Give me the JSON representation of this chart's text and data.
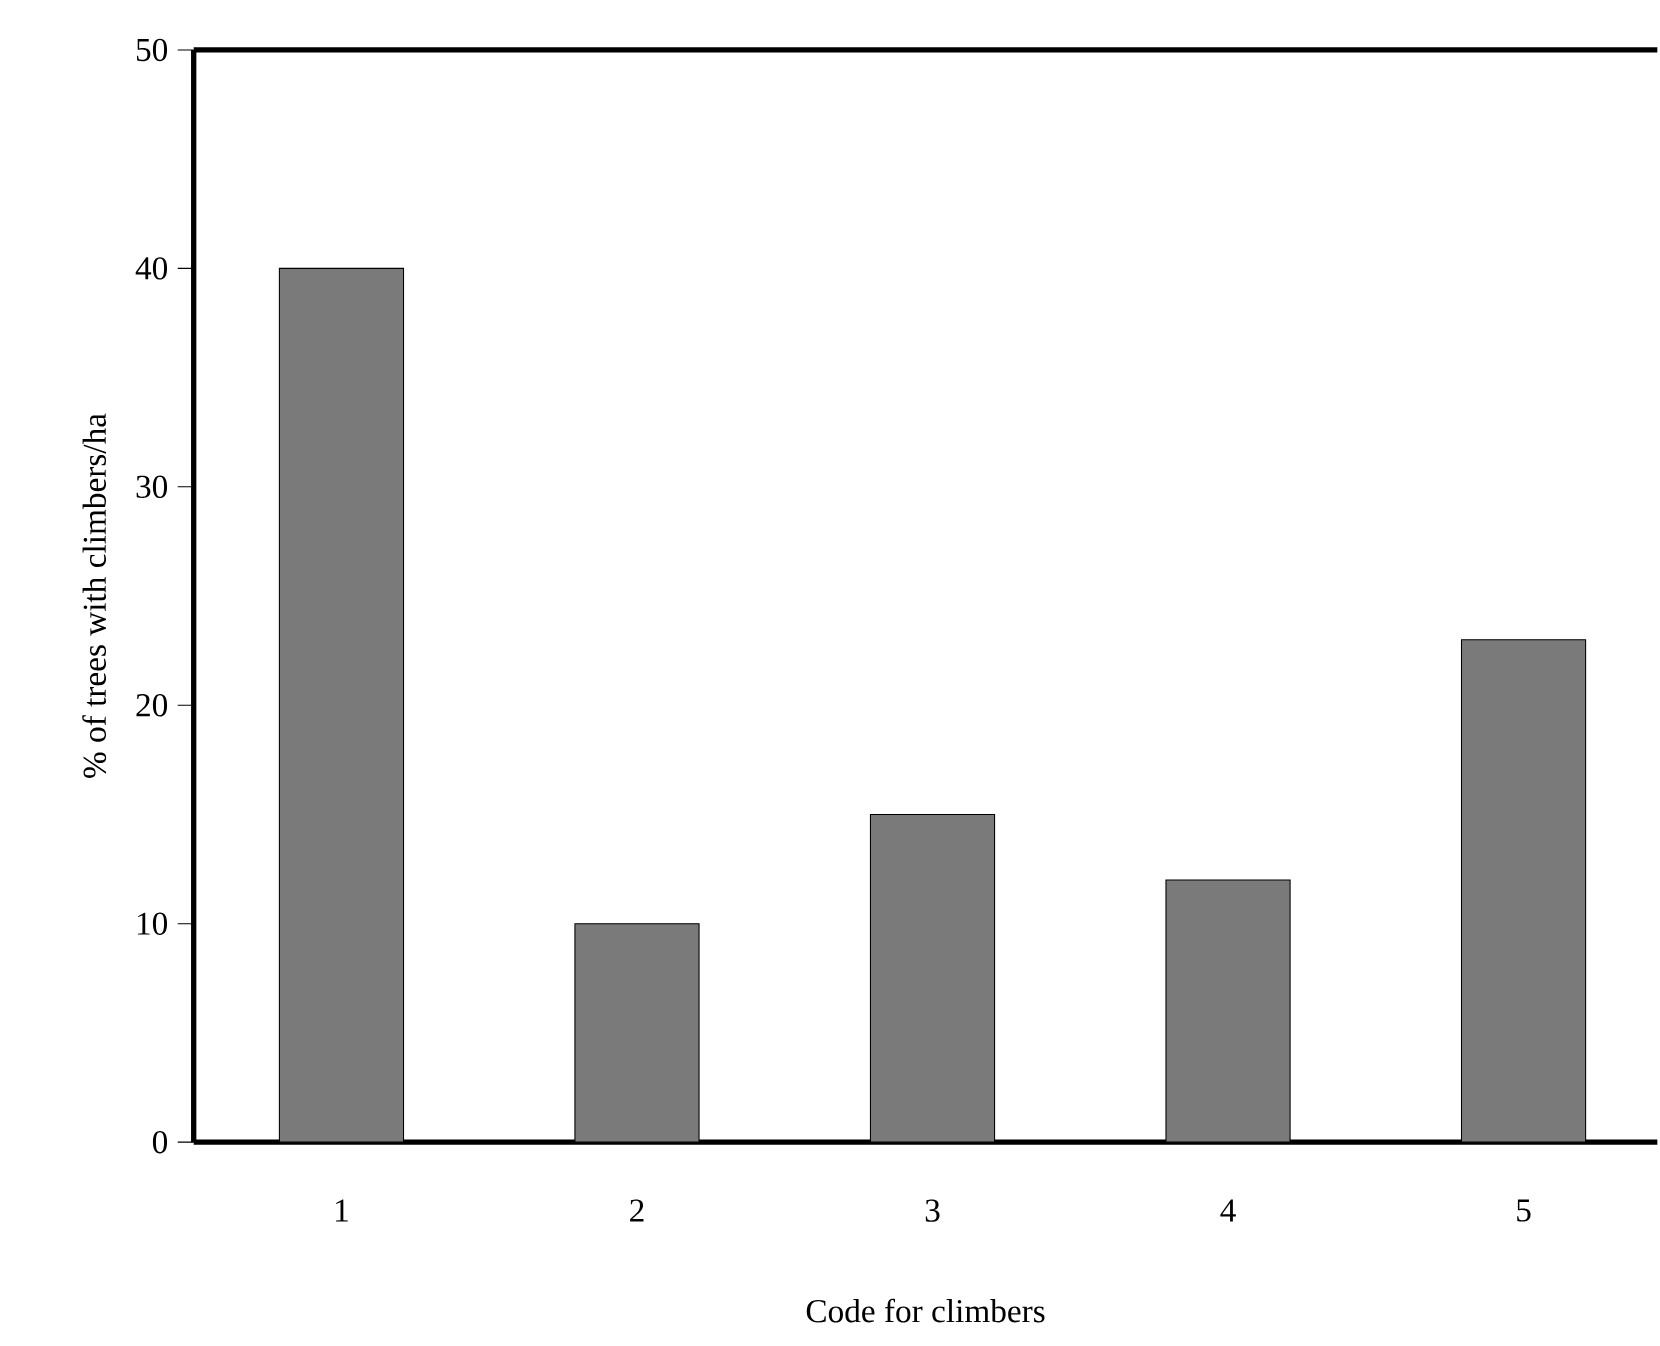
{
  "chart_data": {
    "type": "bar",
    "xlabel": "Code for climbers",
    "ylabel": "% of trees with climbers/ha",
    "categories": [
      "1",
      "2",
      "3",
      "4",
      "5"
    ],
    "values": [
      40,
      10,
      15,
      12,
      23
    ],
    "color": "#7a7a7a",
    "ylim": [
      0,
      50
    ],
    "yticks": [
      0,
      10,
      20,
      30,
      40,
      50
    ],
    "grid": false
  }
}
